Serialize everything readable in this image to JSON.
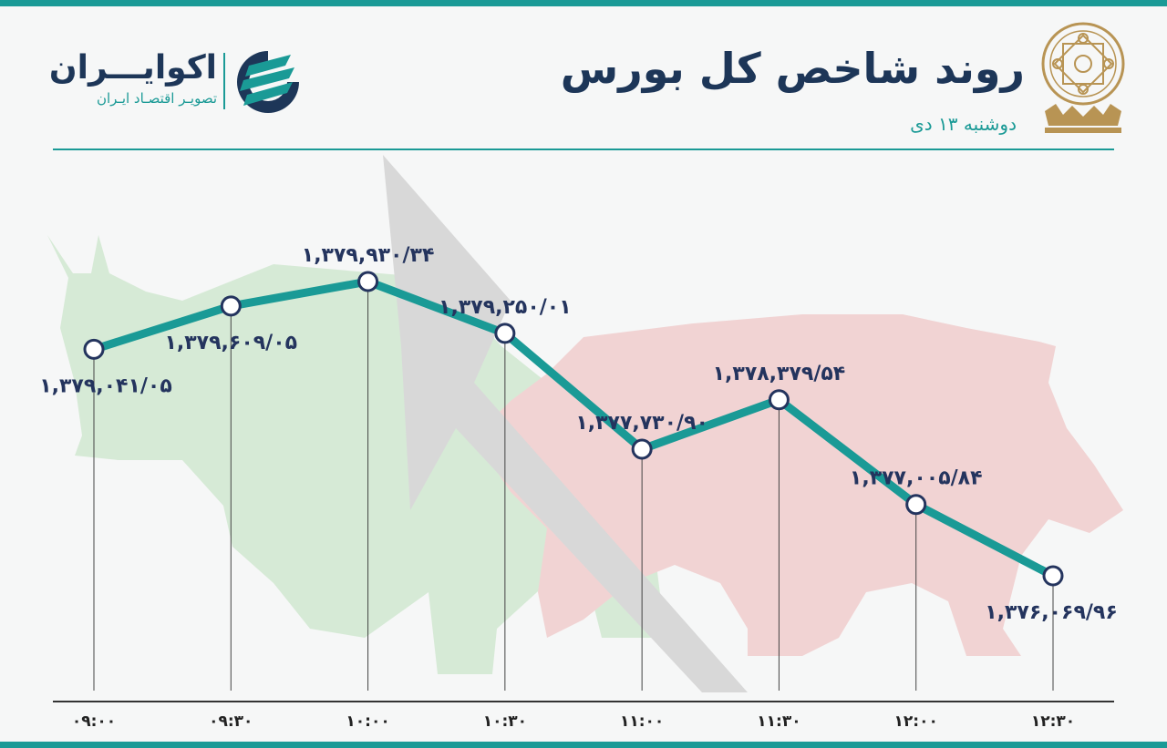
{
  "colors": {
    "accent": "#1a9a96",
    "title": "#1d3658",
    "subtitle": "#1a9a96",
    "data_label": "#24345e",
    "bull": "#d6ead6",
    "bear": "#f1d3d3",
    "arrow": "#d8d8d8",
    "gold": "#b89454"
  },
  "header": {
    "title": "روند شاخص کل بورس",
    "date": "دوشنبه ۱۳ دی"
  },
  "brand": {
    "name": "اکوایـــران",
    "tagline": "تصویـر اقتصـاد ایـران",
    "logo_icon": "ecoiran-logo-icon"
  },
  "emblem_icon": "tehran-stock-exchange-emblem-icon",
  "chart_data": {
    "type": "line",
    "title": "روند شاخص کل بورس",
    "x": [
      "۰۹:۰۰",
      "۰۹:۳۰",
      "۱۰:۰۰",
      "۱۰:۳۰",
      "۱۱:۰۰",
      "۱۱:۳۰",
      "۱۲:۰۰",
      "۱۲:۳۰"
    ],
    "series": [
      {
        "values": [
          1379041.05,
          1379609.05,
          1379930.34,
          1379250.01,
          1377730.9,
          1378379.54,
          1377005.84,
          1376069.96
        ],
        "labels": [
          "۱,۳۷۹,۰۴۱/۰۵",
          "۱,۳۷۹,۶۰۹/۰۵",
          "۱,۳۷۹,۹۳۰/۳۴",
          "۱,۳۷۹,۲۵۰/۰۱",
          "۱,۳۷۷,۷۳۰/۹۰",
          "۱,۳۷۸,۳۷۹/۵۴",
          "۱,۳۷۷,۰۰۵/۸۴",
          "۱,۳۷۶,۰۶۹/۹۶"
        ]
      }
    ],
    "label_side": [
      "below",
      "below",
      "above",
      "above",
      "above",
      "above",
      "above",
      "below"
    ],
    "grid": false,
    "background": "bull-and-bear-silhouettes"
  }
}
